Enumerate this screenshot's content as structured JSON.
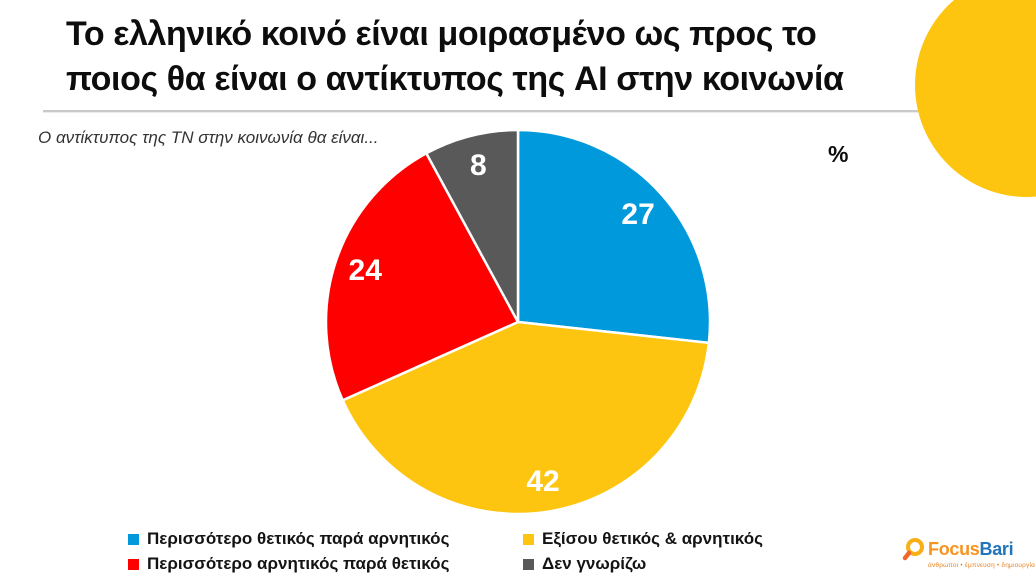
{
  "header": {
    "title_lines": [
      "Το ελληνικό κοινό είναι μοιρασμένο ως προς το",
      "ποιος θα είναι ο αντίκτυπος της AI στην κοινωνία"
    ]
  },
  "chart_data": {
    "type": "pie",
    "title": "Το ελληνικό κοινό είναι μοιρασμένο ως προς το ποιος θα είναι ο αντίκτυπος της AI στην κοινωνία",
    "question": "Ο αντίκτυπος της ΤΝ στην κοινωνία θα είναι...",
    "unit": "%",
    "labels": [
      "Περισσότερο θετικός παρά αρνητικός",
      "Εξίσου θετικός & αρνητικός",
      "Περισσότερο αρνητικός παρά θετικός",
      "Δεν γνωρίζω"
    ],
    "values": [
      27,
      42,
      24,
      8
    ],
    "colors": [
      "#0099dc",
      "#fdc50f",
      "#fe0000",
      "#595959"
    ],
    "start": "top",
    "direction": "clockwise",
    "legend_position": "bottom",
    "value_labels_inside": true
  },
  "brand": {
    "name_part1": "Focus",
    "name_part2": "Bari",
    "tagline": "άνθρωποι • έμπνευση • δημιουργία",
    "accent_orange": "#f7941e",
    "accent_blue": "#2175bc",
    "accent_yellow": "#fdc50f"
  }
}
